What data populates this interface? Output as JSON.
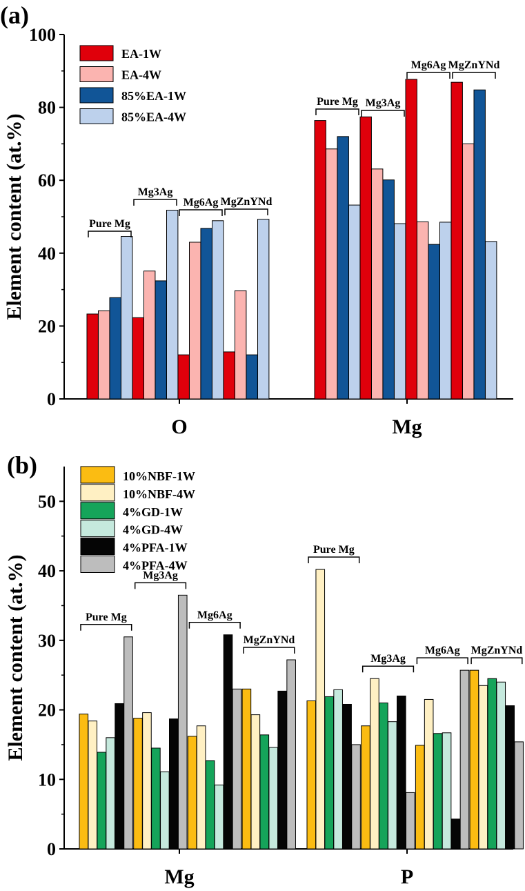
{
  "chart_data": [
    {
      "type": "bar",
      "panel": "(a)",
      "ylabel": "Element content (at.%)",
      "ylim": [
        0,
        100
      ],
      "yticks": [
        0,
        20,
        40,
        60,
        80,
        100
      ],
      "categories": [
        "O",
        "Mg"
      ],
      "groups": [
        "Pure Mg",
        "Mg3Ag",
        "Mg6Ag",
        "MgZnYNd"
      ],
      "series": [
        {
          "name": "EA-1W",
          "color": "#e0000b"
        },
        {
          "name": "EA-4W",
          "color": "#fbb4b0"
        },
        {
          "name": "85%EA-1W",
          "color": "#115597"
        },
        {
          "name": "85%EA-4W",
          "color": "#bdd1ec"
        }
      ],
      "values": {
        "O": {
          "Pure Mg": [
            23.3,
            24.2,
            27.8,
            44.6
          ],
          "Mg3Ag": [
            22.3,
            35.1,
            32.4,
            51.8
          ],
          "Mg6Ag": [
            12.1,
            43.0,
            46.8,
            48.9
          ],
          "MgZnYNd": [
            12.9,
            29.7,
            12.1,
            49.3
          ]
        },
        "Mg": {
          "Pure Mg": [
            76.4,
            68.6,
            72.0,
            53.2
          ],
          "Mg3Ag": [
            77.4,
            63.1,
            60.1,
            48.1
          ],
          "Mg6Ag": [
            87.7,
            48.6,
            42.4,
            48.5
          ],
          "MgZnYNd": [
            86.9,
            70.0,
            84.8,
            43.2
          ]
        }
      }
    },
    {
      "type": "bar",
      "panel": "(b)",
      "ylabel": "Element content (at.%)",
      "ylim": [
        0,
        55
      ],
      "yticks": [
        0,
        10,
        20,
        30,
        40,
        50
      ],
      "categories": [
        "Mg",
        "P"
      ],
      "groups": [
        "Pure Mg",
        "Mg3Ag",
        "Mg6Ag",
        "MgZnYNd"
      ],
      "series": [
        {
          "name": "10%NBF-1W",
          "color": "#fbbc12"
        },
        {
          "name": "10%NBF-4W",
          "color": "#fff0c3"
        },
        {
          "name": "4%GD-1W",
          "color": "#15a45a"
        },
        {
          "name": "4%GD-4W",
          "color": "#c5e9dd"
        },
        {
          "name": "4%PFA-1W",
          "color": "#050505"
        },
        {
          "name": "4%PFA-4W",
          "color": "#bdbdbd"
        }
      ],
      "values": {
        "Mg": {
          "Pure Mg": [
            19.4,
            18.4,
            13.9,
            16.0,
            20.9,
            30.5
          ],
          "Mg3Ag": [
            18.8,
            19.6,
            14.5,
            11.1,
            18.7,
            36.5
          ],
          "Mg6Ag": [
            16.2,
            17.7,
            12.7,
            9.2,
            30.8,
            23.0
          ],
          "MgZnYNd": [
            23.0,
            19.3,
            16.4,
            14.6,
            22.7,
            27.2
          ]
        },
        "P": {
          "Pure Mg": [
            21.3,
            40.2,
            21.9,
            22.9,
            20.8,
            15.0
          ],
          "Mg3Ag": [
            17.7,
            24.5,
            21.0,
            18.3,
            22.0,
            8.1
          ],
          "Mg6Ag": [
            14.9,
            21.5,
            16.6,
            16.7,
            4.3,
            25.7
          ],
          "MgZnYNd": [
            25.7,
            23.5,
            24.5,
            24.0,
            20.6,
            15.4
          ]
        }
      }
    }
  ]
}
